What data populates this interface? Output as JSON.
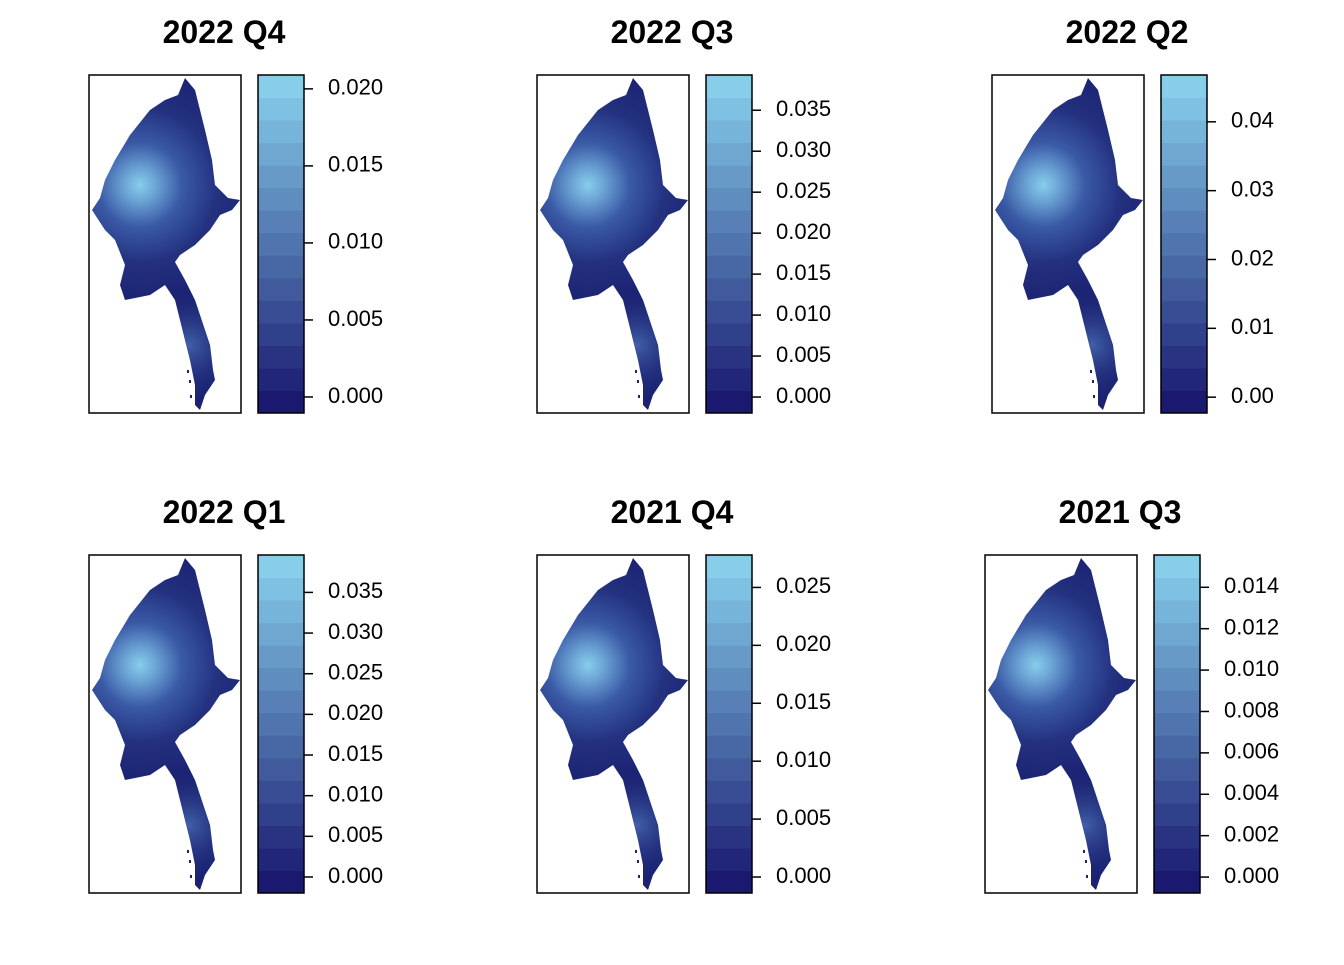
{
  "panels": [
    {
      "title": "2022 Q4",
      "legend": {
        "lim": [
          -0.00104,
          0.0209
        ],
        "ticks": [
          {
            "value": 0,
            "label": "0.000"
          },
          0.005,
          {
            "value": 0.01,
            "label": "0.010"
          },
          0.015,
          {
            "value": 0.02,
            "label": "0.020"
          }
        ]
      }
    },
    {
      "title": "2022 Q3",
      "legend": {
        "lim": [
          -0.00195,
          0.0393
        ],
        "ticks": [
          {
            "value": 0,
            "label": "0.000"
          },
          0.005,
          {
            "value": 0.01,
            "label": "0.010"
          },
          0.015,
          {
            "value": 0.02,
            "label": "0.020"
          },
          0.025,
          {
            "value": 0.03,
            "label": "0.030"
          },
          0.035
        ]
      }
    },
    {
      "title": "2022 Q2",
      "legend": {
        "lim": [
          -0.0023,
          0.0468
        ],
        "ticks": [
          {
            "value": 0,
            "label": "0.00"
          },
          0.01,
          0.02,
          0.03,
          0.04
        ]
      }
    },
    {
      "title": "2022 Q1",
      "legend": {
        "lim": [
          -0.00197,
          0.0396
        ],
        "ticks": [
          {
            "value": 0,
            "label": "0.000"
          },
          0.005,
          {
            "value": 0.01,
            "label": "0.010"
          },
          0.015,
          {
            "value": 0.02,
            "label": "0.020"
          },
          0.025,
          {
            "value": 0.03,
            "label": "0.030"
          },
          0.035
        ]
      }
    },
    {
      "title": "2021 Q4",
      "legend": {
        "lim": [
          -0.00138,
          0.0278
        ],
        "ticks": [
          {
            "value": 0,
            "label": "0.000"
          },
          0.005,
          {
            "value": 0.01,
            "label": "0.010"
          },
          0.015,
          {
            "value": 0.02,
            "label": "0.020"
          },
          0.025
        ]
      }
    },
    {
      "title": "2021 Q3",
      "legend": {
        "lim": [
          -0.00077,
          0.01556
        ],
        "ticks": [
          {
            "value": 0,
            "label": "0.000"
          },
          0.002,
          0.004,
          0.006,
          0.008,
          {
            "value": 0.01,
            "label": "0.010"
          },
          0.012,
          0.014
        ]
      }
    }
  ]
}
